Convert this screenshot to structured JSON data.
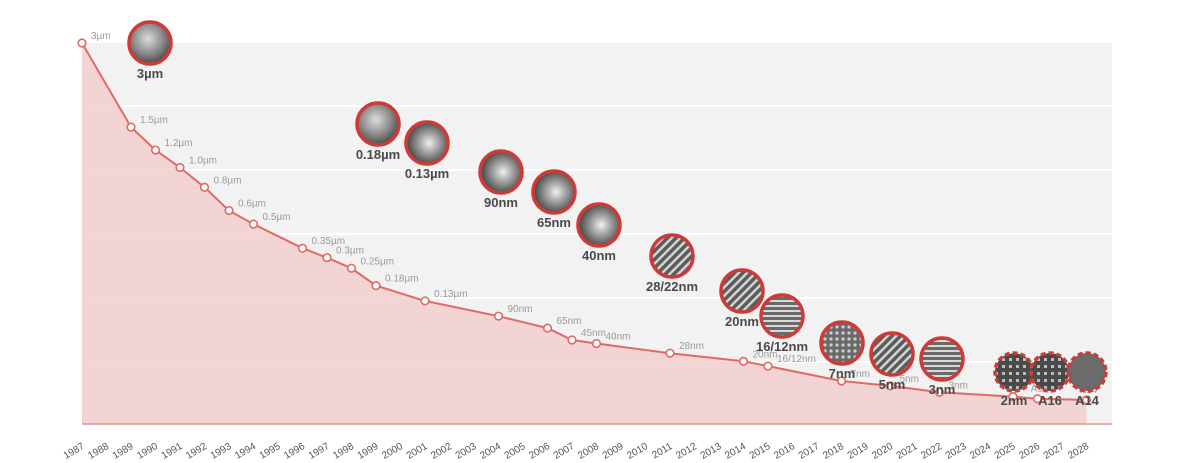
{
  "chart_data": {
    "type": "area",
    "title": "",
    "xlabel": "",
    "ylabel": "",
    "grid": true,
    "colors": {
      "line": "#e06a66",
      "fill": "#f2cfcf",
      "grid_band": "#f2f2f2",
      "node_ring": "#cc3b38",
      "node_fill": "#5b5b5b"
    },
    "categories": [
      "1987",
      "1988",
      "1989",
      "1990",
      "1991",
      "1992",
      "1993",
      "1994",
      "1995",
      "1996",
      "1997",
      "1998",
      "1999",
      "2000",
      "2001",
      "2002",
      "2003",
      "2004",
      "2005",
      "2006",
      "2007",
      "2008",
      "2009",
      "2010",
      "2011",
      "2012",
      "2013",
      "2014",
      "2015",
      "2016",
      "2017",
      "2018",
      "2019",
      "2020",
      "2021",
      "2022",
      "2023",
      "2024",
      "2025",
      "2026",
      "2027",
      "2028"
    ],
    "points": [
      {
        "year": "1987",
        "label": "3µm",
        "value": 3000
      },
      {
        "year": "1989",
        "label": "1.5µm",
        "value": 1500
      },
      {
        "year": "1990",
        "label": "1.2µm",
        "value": 1200
      },
      {
        "year": "1991",
        "label": "1.0µm",
        "value": 1000
      },
      {
        "year": "1992",
        "label": "0.8µm",
        "value": 800
      },
      {
        "year": "1993",
        "label": "0.6µm",
        "value": 600
      },
      {
        "year": "1994",
        "label": "0.5µm",
        "value": 500
      },
      {
        "year": "1996",
        "label": "0.35µm",
        "value": 350
      },
      {
        "year": "1997",
        "label": "0.3µm",
        "value": 300
      },
      {
        "year": "1998",
        "label": "0.25µm",
        "value": 250
      },
      {
        "year": "1999",
        "label": "0.18µm",
        "value": 180
      },
      {
        "year": "2001",
        "label": "0.13µm",
        "value": 130
      },
      {
        "year": "2004",
        "label": "90nm",
        "value": 90
      },
      {
        "year": "2006",
        "label": "65nm",
        "value": 65
      },
      {
        "year": "2007",
        "label": "45nm",
        "value": 45
      },
      {
        "year": "2008",
        "label": "40nm",
        "value": 40
      },
      {
        "year": "2011",
        "label": "28nm",
        "value": 28
      },
      {
        "year": "2014",
        "label": "20nm",
        "value": 20
      },
      {
        "year": "2015",
        "label": "16/12nm",
        "value": 16
      },
      {
        "year": "2018",
        "label": "7nm",
        "value": 7
      },
      {
        "year": "2020",
        "label": "5nm",
        "value": 5
      },
      {
        "year": "2022",
        "label": "3nm",
        "value": 3
      },
      {
        "year": "2025",
        "label": "2nm",
        "value": 2
      },
      {
        "year": "2026",
        "label": "A16",
        "value": 1.6
      },
      {
        "year": "2028",
        "label": "A14",
        "value": 1.4
      }
    ],
    "nodes": [
      {
        "label": "3µm",
        "icon": "3um-process-image"
      },
      {
        "label": "0.18µm",
        "icon": "0-18um-process-image"
      },
      {
        "label": "0.13µm",
        "icon": "0-13um-process-image"
      },
      {
        "label": "90nm",
        "icon": "90nm-process-image"
      },
      {
        "label": "65nm",
        "icon": "65nm-process-image"
      },
      {
        "label": "40nm",
        "icon": "40nm-process-image"
      },
      {
        "label": "28/22nm",
        "icon": "28-22nm-process-image"
      },
      {
        "label": "20nm",
        "icon": "20nm-process-image"
      },
      {
        "label": "16/12nm",
        "icon": "16-12nm-process-image"
      },
      {
        "label": "7nm",
        "icon": "7nm-process-image"
      },
      {
        "label": "5nm",
        "icon": "5nm-process-image"
      },
      {
        "label": "3nm",
        "icon": "3nm-process-image"
      },
      {
        "label": "2nm",
        "icon": "2nm-process-image",
        "future": true
      },
      {
        "label": "A16",
        "icon": "a16-process-image",
        "future": true
      },
      {
        "label": "A14",
        "icon": "a14-process-image",
        "future": true
      }
    ]
  }
}
